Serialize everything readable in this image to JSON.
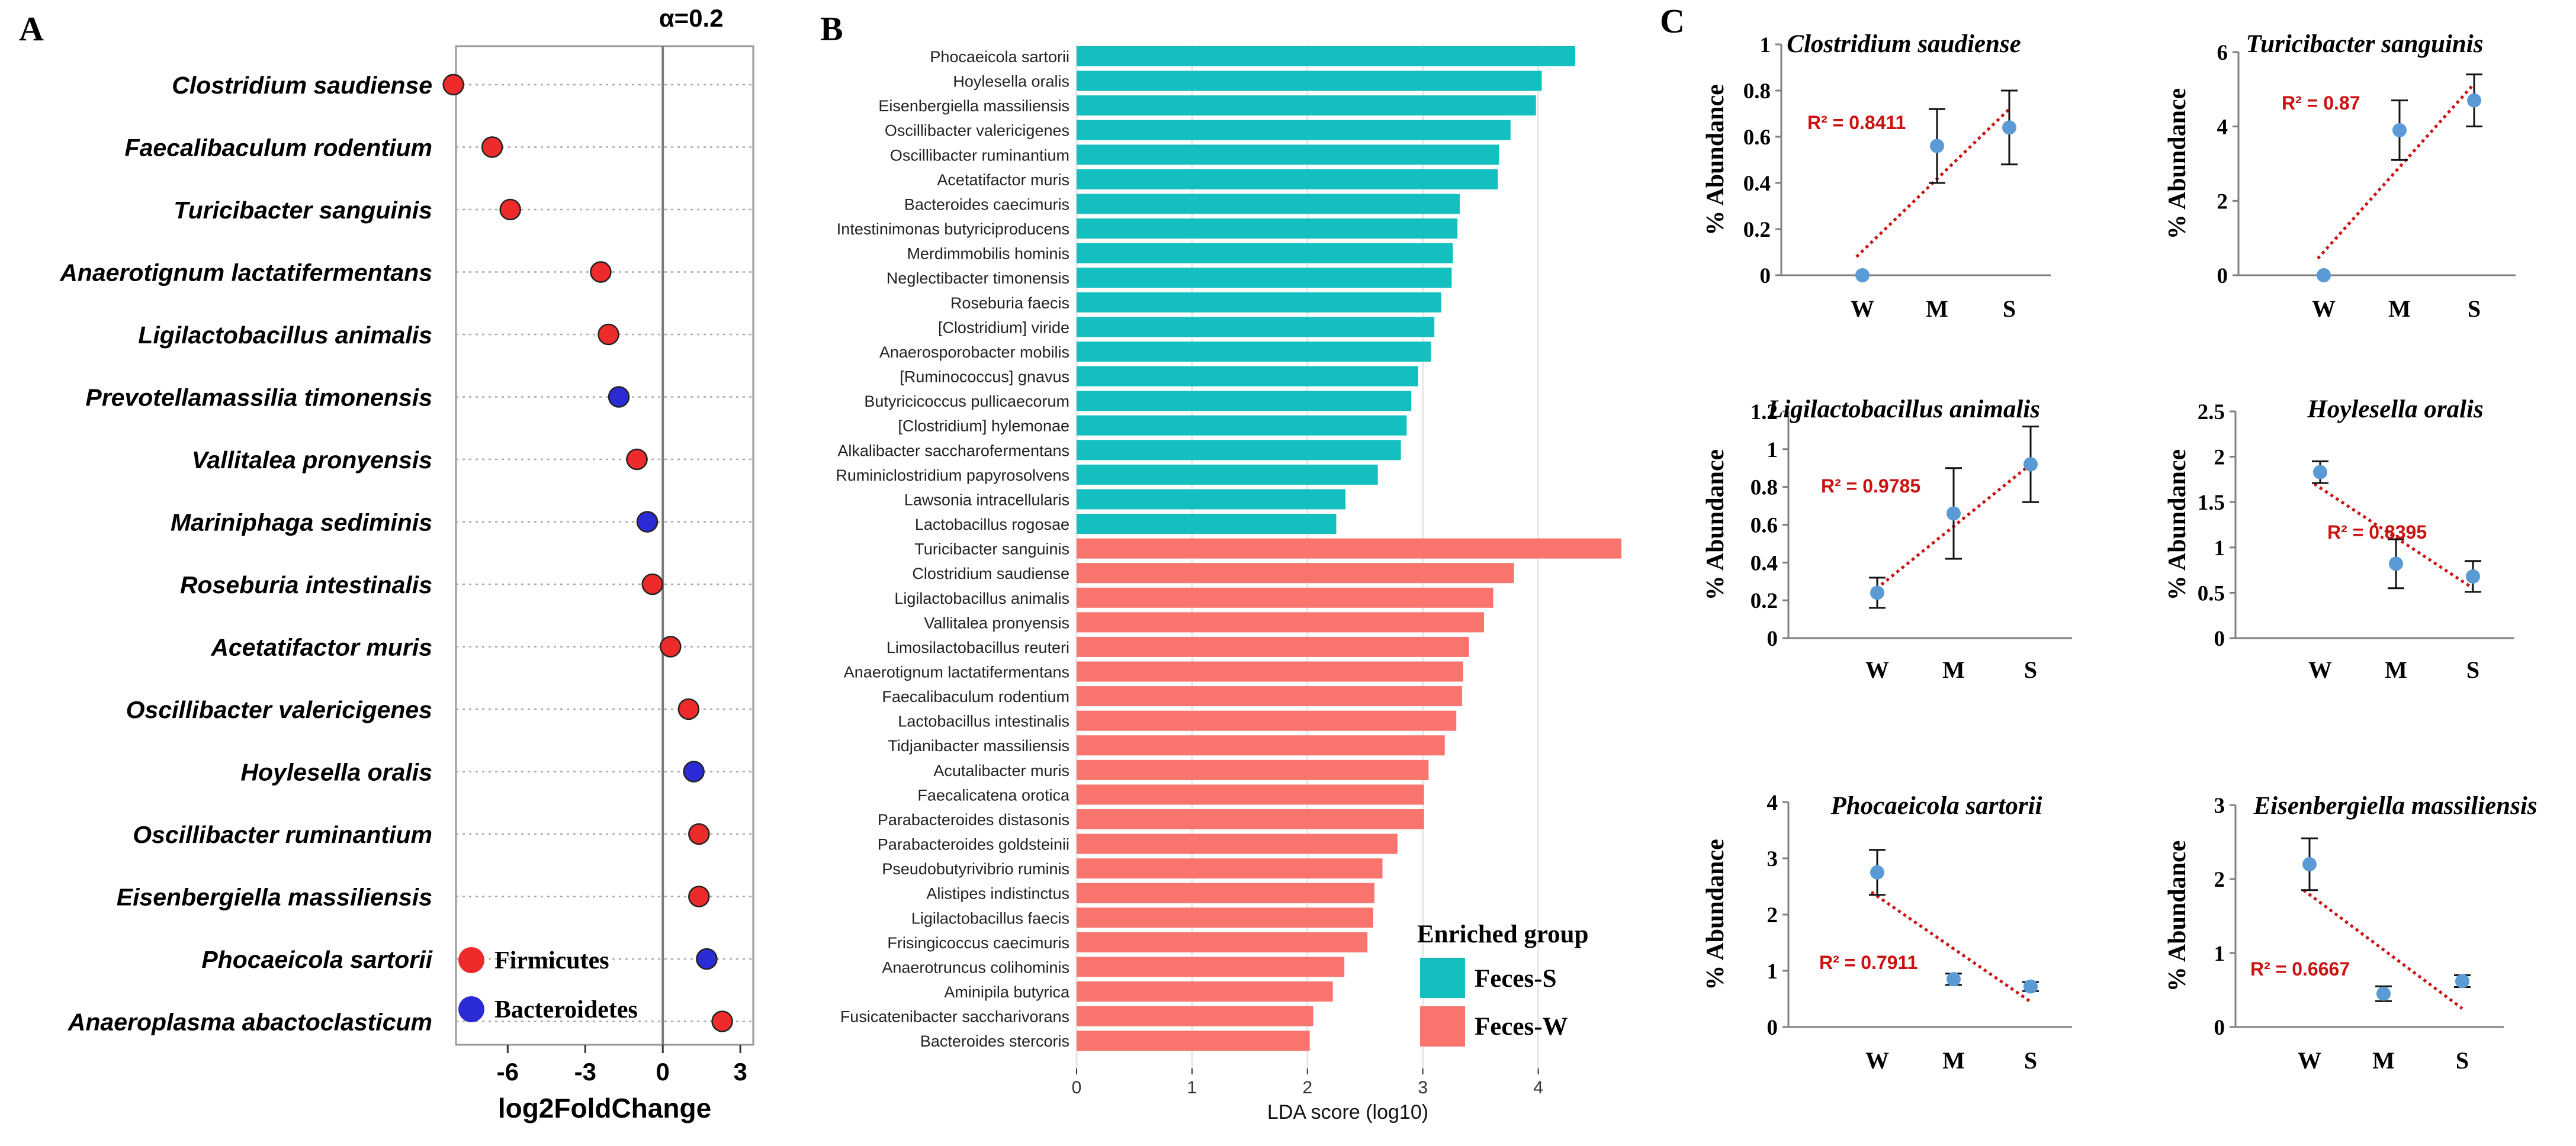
{
  "panel_labels": {
    "a": "A",
    "b": "B",
    "c": "C"
  },
  "colors": {
    "firmicutes": "#ee2b2b",
    "bacteroidetes": "#2b2bd6",
    "feces_s": "#13bfbf",
    "feces_w": "#f8746c",
    "trend": "#cc1111",
    "point": "#5a9bd5",
    "grid": "#e6e6e6"
  },
  "chart_data": [
    {
      "id": "A",
      "type": "scatter",
      "title": "",
      "xlabel": "log2FoldChange",
      "ylabel": "",
      "alpha_label": "α=0.2",
      "xlim": [
        -8,
        3.5
      ],
      "xticks": [
        -6,
        -3,
        0,
        3
      ],
      "xtick_labels": [
        "-6",
        "-3",
        "0",
        "3"
      ],
      "categories": [
        "Clostridium saudiense",
        "Faecalibaculum rodentium",
        "Turicibacter sanguinis",
        "Anaerotignum lactatifermentans",
        "Ligilactobacillus animalis",
        "Prevotellamassilia timonensis",
        "Vallitalea pronyensis",
        "Mariniphaga sediminis",
        "Roseburia intestinalis",
        "Acetatifactor muris",
        "Oscillibacter valericigenes",
        "Hoylesella oralis",
        "Oscillibacter ruminantium",
        "Eisenbergiella massiliensis",
        "Phocaeicola sartorii",
        "Anaeroplasma abactoclasticum"
      ],
      "values": [
        -8.1,
        -6.6,
        -5.9,
        -2.4,
        -2.1,
        -1.7,
        -1.0,
        -0.6,
        -0.4,
        0.3,
        1.0,
        1.2,
        1.4,
        1.4,
        1.7,
        2.3
      ],
      "groups": [
        "Firmicutes",
        "Firmicutes",
        "Firmicutes",
        "Firmicutes",
        "Firmicutes",
        "Bacteroidetes",
        "Firmicutes",
        "Bacteroidetes",
        "Firmicutes",
        "Firmicutes",
        "Firmicutes",
        "Bacteroidetes",
        "Firmicutes",
        "Firmicutes",
        "Bacteroidetes",
        "Firmicutes"
      ],
      "legend": [
        "Firmicutes",
        "Bacteroidetes"
      ]
    },
    {
      "id": "B",
      "type": "bar",
      "orientation": "horizontal",
      "xlabel": "LDA score (log10)",
      "xlim": [
        0,
        4.7
      ],
      "xticks": [
        0,
        1,
        2,
        3,
        4
      ],
      "xtick_labels": [
        "0",
        "1",
        "2",
        "3",
        "4"
      ],
      "legend_title": "Enriched group",
      "legend": [
        "Feces-S",
        "Feces-W"
      ],
      "categories": [
        "Phocaeicola sartorii",
        "Hoylesella oralis",
        "Eisenbergiella massiliensis",
        "Oscillibacter valericigenes",
        "Oscillibacter ruminantium",
        "Acetatifactor muris",
        "Bacteroides caecimuris",
        "Intestinimonas butyriciproducens",
        "Merdimmobilis hominis",
        "Neglectibacter timonensis",
        "Roseburia faecis",
        "[Clostridium] viride",
        "Anaerosporobacter mobilis",
        "[Ruminococcus] gnavus",
        "Butyricicoccus pullicaecorum",
        "[Clostridium] hylemonae",
        "Alkalibacter saccharofermentans",
        "Ruminiclostridium papyrosolvens",
        "Lawsonia intracellularis",
        "Lactobacillus rogosae",
        "Turicibacter sanguinis",
        "Clostridium saudiense",
        "Ligilactobacillus animalis",
        "Vallitalea pronyensis",
        "Limosilactobacillus reuteri",
        "Anaerotignum lactatifermentans",
        "Faecalibaculum rodentium",
        "Lactobacillus intestinalis",
        "Tidjanibacter massiliensis",
        "Acutalibacter muris",
        "Faecalicatena orotica",
        "Parabacteroides distasonis",
        "Parabacteroides goldsteinii",
        "Pseudobutyrivibrio ruminis",
        "Alistipes indistinctus",
        "Ligilactobacillus faecis",
        "Frisingicoccus caecimuris",
        "Anaerotruncus colihominis",
        "Aminipila butyrica",
        "Fusicatenibacter saccharivorans",
        "Bacteroides stercoris"
      ],
      "values": [
        4.32,
        4.03,
        3.98,
        3.76,
        3.66,
        3.65,
        3.32,
        3.3,
        3.26,
        3.25,
        3.16,
        3.1,
        3.07,
        2.96,
        2.9,
        2.86,
        2.81,
        2.61,
        2.33,
        2.25,
        4.72,
        3.79,
        3.61,
        3.53,
        3.4,
        3.35,
        3.34,
        3.29,
        3.19,
        3.05,
        3.01,
        3.01,
        2.78,
        2.65,
        2.58,
        2.57,
        2.52,
        2.32,
        2.22,
        2.05,
        2.02
      ],
      "groups": [
        "Feces-S",
        "Feces-S",
        "Feces-S",
        "Feces-S",
        "Feces-S",
        "Feces-S",
        "Feces-S",
        "Feces-S",
        "Feces-S",
        "Feces-S",
        "Feces-S",
        "Feces-S",
        "Feces-S",
        "Feces-S",
        "Feces-S",
        "Feces-S",
        "Feces-S",
        "Feces-S",
        "Feces-S",
        "Feces-S",
        "Feces-W",
        "Feces-W",
        "Feces-W",
        "Feces-W",
        "Feces-W",
        "Feces-W",
        "Feces-W",
        "Feces-W",
        "Feces-W",
        "Feces-W",
        "Feces-W",
        "Feces-W",
        "Feces-W",
        "Feces-W",
        "Feces-W",
        "Feces-W",
        "Feces-W",
        "Feces-W",
        "Feces-W",
        "Feces-W",
        "Feces-W"
      ]
    },
    {
      "id": "C1",
      "type": "scatter",
      "title": "Clostridium saudiense",
      "ylabel": "% Abundance",
      "categories": [
        "W",
        "M",
        "S"
      ],
      "values": [
        0,
        0.56,
        0.64
      ],
      "errors": [
        0,
        0.16,
        0.16
      ],
      "ylim": [
        0,
        1
      ],
      "yticks": [
        0,
        0.2,
        0.4,
        0.6,
        0.8,
        1
      ],
      "ytick_labels": [
        "0",
        "0.2",
        "0.4",
        "0.6",
        "0.8",
        "1"
      ],
      "trend": [
        0.08,
        0.72
      ],
      "r2": "R² = 0.8411"
    },
    {
      "id": "C2",
      "type": "scatter",
      "title": "Turicibacter sanguinis",
      "ylabel": "% Abundance",
      "categories": [
        "W",
        "M",
        "S"
      ],
      "values": [
        0,
        3.9,
        4.7
      ],
      "errors": [
        0,
        0.8,
        0.7
      ],
      "ylim": [
        0,
        6
      ],
      "yticks": [
        0,
        2,
        4,
        6
      ],
      "ytick_labels": [
        "0",
        "2",
        "4",
        "6"
      ],
      "trend": [
        0.45,
        5.15
      ],
      "r2": "R² = 0.87"
    },
    {
      "id": "C3",
      "type": "scatter",
      "title": "Ligilactobacillus animalis",
      "ylabel": "% Abundance",
      "categories": [
        "W",
        "M",
        "S"
      ],
      "values": [
        0.24,
        0.66,
        0.92
      ],
      "errors": [
        0.08,
        0.24,
        0.2
      ],
      "ylim": [
        0,
        1.2
      ],
      "yticks": [
        0,
        0.2,
        0.4,
        0.6,
        0.8,
        1,
        1.2
      ],
      "ytick_labels": [
        "0",
        "0.2",
        "0.4",
        "0.6",
        "0.8",
        "1",
        "1.2"
      ],
      "trend": [
        0.24,
        0.92
      ],
      "r2": "R² = 0.9785"
    },
    {
      "id": "C4",
      "type": "scatter",
      "title": "Hoylesella oralis",
      "ylabel": "% Abundance",
      "categories": [
        "W",
        "M",
        "S"
      ],
      "values": [
        1.83,
        0.82,
        0.68
      ],
      "errors": [
        0.12,
        0.27,
        0.17
      ],
      "ylim": [
        0,
        2.5
      ],
      "yticks": [
        0,
        0.5,
        1,
        1.5,
        2,
        2.5
      ],
      "ytick_labels": [
        "0",
        "0.5",
        "1",
        "1.5",
        "2",
        "2.5"
      ],
      "trend": [
        1.7,
        0.55
      ],
      "r2": "R² = 0.8395"
    },
    {
      "id": "C5",
      "type": "scatter",
      "title": "Phocaeicola sartorii",
      "ylabel": "% Abundance",
      "categories": [
        "W",
        "M",
        "S"
      ],
      "values": [
        2.75,
        0.85,
        0.72
      ],
      "errors": [
        0.4,
        0.1,
        0.08
      ],
      "ylim": [
        0,
        4
      ],
      "yticks": [
        0,
        1,
        2,
        3,
        4
      ],
      "ytick_labels": [
        "0",
        "1",
        "2",
        "3",
        "4"
      ],
      "trend": [
        2.4,
        0.45
      ],
      "r2": "R² = 0.7911"
    },
    {
      "id": "C6",
      "type": "scatter",
      "title": "Eisenbergiella massiliensis",
      "ylabel": "% Abundance",
      "categories": [
        "W",
        "M",
        "S"
      ],
      "values": [
        2.2,
        0.45,
        0.62
      ],
      "errors": [
        0.35,
        0.1,
        0.08
      ],
      "ylim": [
        0,
        3
      ],
      "yticks": [
        0,
        1,
        2,
        3
      ],
      "ytick_labels": [
        "0",
        "1",
        "2",
        "3"
      ],
      "trend": [
        1.85,
        0.25
      ],
      "r2": "R² = 0.6667"
    }
  ]
}
